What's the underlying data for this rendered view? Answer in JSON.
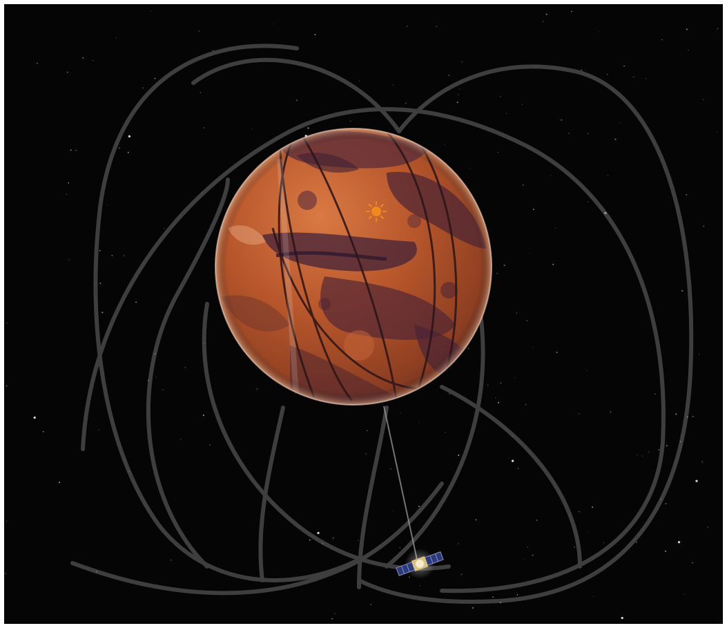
{
  "scene": {
    "background_color": "#050505",
    "frame_color": "#ffffff",
    "orbit_track_color": "#6e6e6e",
    "planet": {
      "name_icon": "mars-globe",
      "base_color": "#b8572b",
      "shadow_color": "#3f2034",
      "highlight_color": "#d9783f"
    },
    "sun_marker": {
      "icon": "sun-icon",
      "color": "#f08a1c"
    },
    "spacecraft": {
      "icon": "satellite-icon",
      "body_color": "#d9c27a",
      "panel_color": "#2a3a7a"
    },
    "link_line": {
      "icon": "ground-link-line",
      "color": "#9a9a9a"
    }
  }
}
